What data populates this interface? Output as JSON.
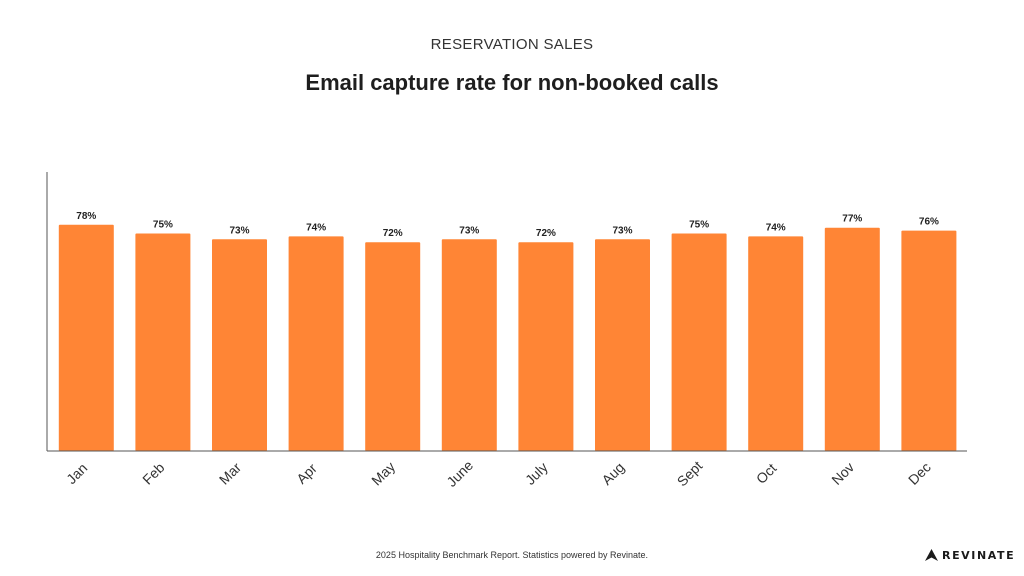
{
  "header": {
    "subtitle": "RESERVATION SALES",
    "title": "Email capture rate for non-booked calls"
  },
  "footer": {
    "source": "2025 Hospitality Benchmark Report. Statistics powered by Revinate.",
    "brand": "REVINATE"
  },
  "colors": {
    "bar": "#FF8535",
    "axis": "#555555",
    "label": "#222222"
  },
  "chart_data": {
    "type": "bar",
    "categories": [
      "Jan",
      "Feb",
      "Mar",
      "Apr",
      "May",
      "June",
      "July",
      "Aug",
      "Sept",
      "Oct",
      "Nov",
      "Dec"
    ],
    "values": [
      78,
      75,
      73,
      74,
      72,
      73,
      72,
      73,
      75,
      74,
      77,
      76
    ],
    "value_labels": [
      "78%",
      "75%",
      "73%",
      "74%",
      "72%",
      "73%",
      "72%",
      "73%",
      "75%",
      "74%",
      "77%",
      "76%"
    ],
    "title": "Email capture rate for non-booked calls",
    "xlabel": "",
    "ylabel": "",
    "ylim": [
      0,
      100
    ],
    "grid": false
  }
}
